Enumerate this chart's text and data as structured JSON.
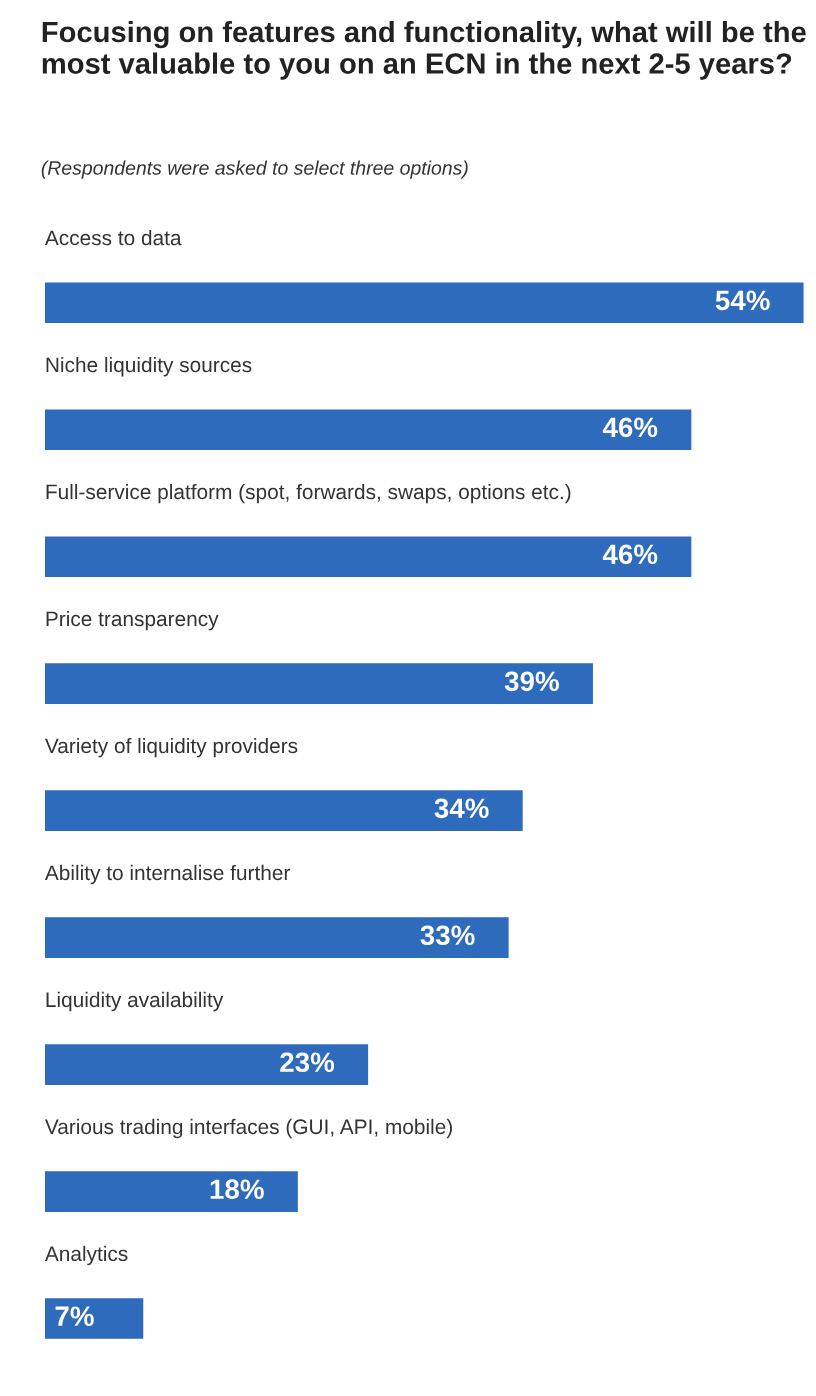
{
  "chart_data": {
    "type": "bar",
    "orientation": "horizontal",
    "title": "Focusing on features and functionality, what will be the most valuable to you on an ECN in the next 2-5 years?",
    "subtitle": "(Respondents were asked to select three options)",
    "categories": [
      "Access to data",
      "Niche liquidity sources",
      "Full-service platform (spot, forwards, swaps, options etc.)",
      "Price transparency",
      "Variety of liquidity providers",
      "Ability to internalise further",
      "Liquidity availability",
      "Various trading interfaces (GUI, API, mobile)",
      "Analytics"
    ],
    "values": [
      54,
      46,
      46,
      39,
      34,
      33,
      23,
      18,
      7
    ],
    "value_labels": [
      "54%",
      "46%",
      "46%",
      "39%",
      "34%",
      "33%",
      "23%",
      "18%",
      "7%"
    ],
    "color": "#2f6bbd"
  }
}
